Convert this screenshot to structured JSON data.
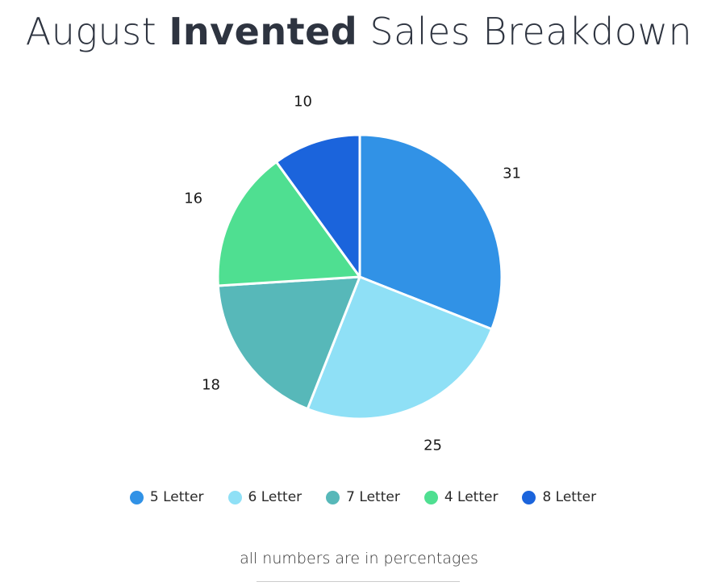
{
  "chart_data": {
    "type": "pie",
    "title_parts": {
      "pre": "August ",
      "bold": "Invented",
      "post": " Sales Breakdown"
    },
    "categories": [
      "5 Letter",
      "6 Letter",
      "7 Letter",
      "4 Letter",
      "8 Letter"
    ],
    "values": [
      31,
      25,
      18,
      16,
      10
    ],
    "colors": [
      "#3192e6",
      "#8fe0f6",
      "#57b8b9",
      "#4fdf91",
      "#1b64dc"
    ],
    "legend_placement": "bottom",
    "note": "all numbers are in percentages"
  }
}
